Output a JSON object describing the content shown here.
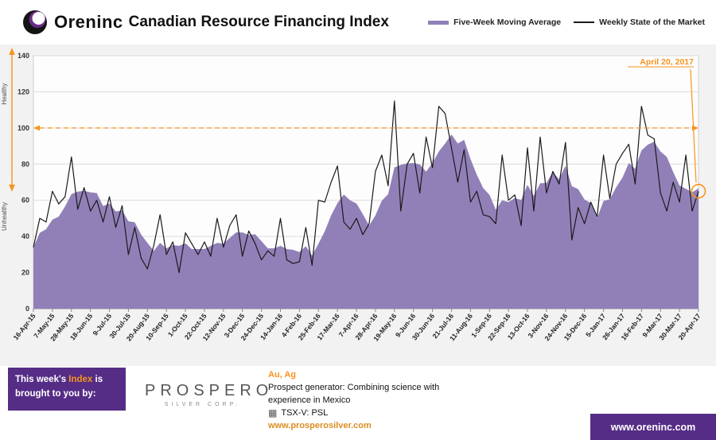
{
  "header": {
    "brand": "Oreninc",
    "title": "Canadian Resource Financing Index",
    "legend": [
      {
        "label": "Five-Week Moving Average"
      },
      {
        "label": "Weekly State of the Market"
      }
    ]
  },
  "colors": {
    "purple_area": "#9180B8",
    "line_black": "#1a1a1a",
    "orange": "#F7941D",
    "brand_purple": "#562D86"
  },
  "chart_data": {
    "type": "line+area",
    "title": "Oreninc Canadian Resource Financing Index",
    "ylim": [
      0,
      140
    ],
    "y_ticks": [
      0,
      20,
      40,
      60,
      80,
      100,
      120,
      140
    ],
    "grid": true,
    "legend_position": "top-right",
    "threshold": {
      "value": 100,
      "style": "dashed",
      "color": "#F7941D"
    },
    "zone_labels": {
      "upper": "Healthy",
      "lower": "Unhealthy"
    },
    "x_tick_every": 3,
    "x_tick_labels": [
      "16-Apr-15",
      "7-May-15",
      "28-May-15",
      "18-Jun-15",
      "9-Jul-15",
      "30-Jul-15",
      "20-Aug-15",
      "10-Sep-15",
      "1-Oct-15",
      "22-Oct-15",
      "12-Nov-15",
      "3-Dec-15",
      "24-Dec-15",
      "14-Jan-16",
      "4-Feb-16",
      "25-Feb-16",
      "17-Mar-16",
      "7-Apr-16",
      "28-Apr-16",
      "19-May-16",
      "9-Jun-16",
      "30-Jun-16",
      "21-Jul-16",
      "11-Aug-16",
      "1-Sep-16",
      "22-Sep-16",
      "13-Oct-16",
      "3-Nov-16",
      "24-Nov-16",
      "15-Dec-16",
      "5-Jan-17",
      "26-Jan-17",
      "16-Feb-17",
      "9-Mar-17",
      "30-Mar-17",
      "20-Apr-17"
    ],
    "series": [
      {
        "name": "Weekly State of the Market",
        "type": "line",
        "color": "#1a1a1a",
        "values": [
          34,
          50,
          48,
          65,
          58,
          62,
          84,
          55,
          67,
          54,
          60,
          48,
          62,
          45,
          57,
          30,
          45,
          28,
          22,
          35,
          52,
          30,
          37,
          20,
          42,
          36,
          30,
          37,
          29,
          50,
          34,
          46,
          52,
          29,
          43,
          36,
          27,
          32,
          29,
          50,
          27,
          25,
          26,
          45,
          24,
          60,
          59,
          70,
          79,
          48,
          44,
          50,
          41,
          47,
          76,
          85,
          68,
          115,
          54,
          80,
          86,
          64,
          95,
          78,
          112,
          108,
          89,
          70,
          88,
          59,
          65,
          52,
          51,
          47,
          85,
          60,
          63,
          46,
          89,
          54,
          95,
          64,
          76,
          69,
          92,
          38,
          56,
          47,
          59,
          51,
          85,
          61,
          80,
          86,
          91,
          69,
          112,
          96,
          94,
          64,
          54,
          70,
          59,
          85,
          54,
          65
        ]
      },
      {
        "name": "Five-Week Moving Average",
        "type": "area",
        "color": "#9180B8",
        "values": [
          34,
          42,
          44,
          49.3,
          51,
          56.6,
          63.4,
          64.8,
          65.2,
          64.4,
          64,
          56.8,
          58.2,
          53.8,
          54.4,
          48.4,
          47.8,
          41,
          36.4,
          32,
          36.4,
          33.4,
          35.2,
          34.8,
          36.2,
          33,
          33,
          33,
          34.8,
          36.4,
          36,
          39.2,
          42.2,
          42.2,
          40.8,
          41.2,
          37.4,
          33.4,
          33.4,
          34.8,
          33,
          32.6,
          31.4,
          34.6,
          29.4,
          36,
          42.8,
          51.6,
          58.4,
          63.2,
          60,
          58.2,
          52.4,
          46,
          51.6,
          59.8,
          63.4,
          78.2,
          79.6,
          80.4,
          80.6,
          79.8,
          75.8,
          80.6,
          87,
          91.4,
          96.4,
          91.4,
          93.4,
          82.8,
          74.2,
          66.8,
          63,
          54.8,
          60,
          59,
          61.2,
          60.2,
          68.6,
          62.4,
          69.4,
          69.6,
          75.6,
          71.6,
          79.2,
          67.8,
          66.2,
          60.4,
          58.4,
          50.2,
          59.6,
          60.6,
          67.2,
          72.6,
          80.6,
          77.4,
          87.6,
          90.8,
          92.4,
          87,
          84,
          75.6,
          68.2,
          66.4,
          64.4,
          66.6
        ]
      }
    ],
    "annotation": {
      "label": "April 20, 2017",
      "points_to": "20-Apr-17",
      "value": 65
    }
  },
  "sponsor": {
    "tagline_parts": [
      "This week's ",
      "Index",
      " is brought to you by:"
    ],
    "logo_name": "PROSPERO",
    "logo_sub": "SILVER CORP.",
    "metals": "Au, Ag",
    "description": "Prospect generator: Combining science with experience in Mexico",
    "ticker": "TSX-V:  PSL",
    "ticker_icon": "grid-icon",
    "url": "www.prosperosilver.com"
  },
  "footer": {
    "oreninc_url": "www.oreninc.com"
  }
}
